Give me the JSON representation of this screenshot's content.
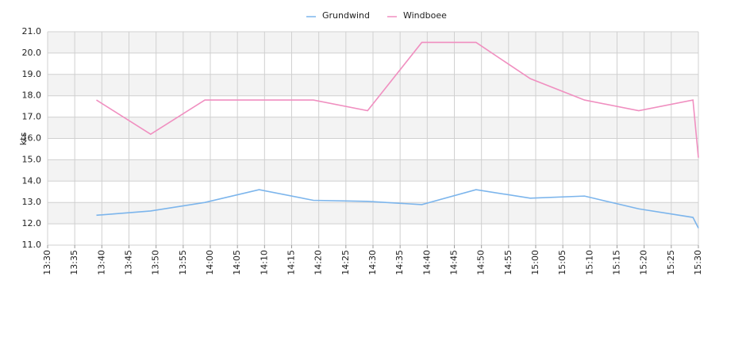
{
  "chart_data": {
    "type": "line",
    "y_label": "kts",
    "x": [
      "13:39",
      "13:49",
      "13:59",
      "14:09",
      "14:19",
      "14:29",
      "14:39",
      "14:49",
      "14:59",
      "15:09",
      "15:19",
      "15:29",
      "15:30"
    ],
    "series": [
      {
        "name": "Grundwind",
        "color": "#7cb5ec",
        "values": [
          12.4,
          12.6,
          13.0,
          13.6,
          13.1,
          13.05,
          12.9,
          13.6,
          13.2,
          13.3,
          12.7,
          12.3,
          11.8
        ]
      },
      {
        "name": "Windboee",
        "color": "#f08fc0",
        "values": [
          17.8,
          16.2,
          17.8,
          17.8,
          17.8,
          17.3,
          20.5,
          20.5,
          18.8,
          17.8,
          17.3,
          17.8,
          15.1
        ]
      }
    ],
    "xlim": [
      "13:30",
      "15:30"
    ],
    "xticks": [
      "13:30",
      "13:35",
      "13:40",
      "13:45",
      "13:50",
      "13:55",
      "14:00",
      "14:05",
      "14:10",
      "14:15",
      "14:20",
      "14:25",
      "14:30",
      "14:35",
      "14:40",
      "14:45",
      "14:50",
      "14:55",
      "15:00",
      "15:05",
      "15:10",
      "15:15",
      "15:20",
      "15:25",
      "15:30"
    ],
    "ylim": [
      11,
      21
    ],
    "yticks": [
      {
        "value": 11,
        "label": "11.0"
      },
      {
        "value": 12,
        "label": "12.0"
      },
      {
        "value": 13,
        "label": "13.0"
      },
      {
        "value": 14,
        "label": "14.0"
      },
      {
        "value": 15,
        "label": "15.0"
      },
      {
        "value": 16,
        "label": "16.0"
      },
      {
        "value": 17,
        "label": "17.0"
      },
      {
        "value": 18,
        "label": "18.0"
      },
      {
        "value": 19,
        "label": "19.0"
      },
      {
        "value": 20,
        "label": "20.0"
      },
      {
        "value": 21,
        "label": "21.0"
      }
    ],
    "grid": true,
    "legend": "top"
  }
}
